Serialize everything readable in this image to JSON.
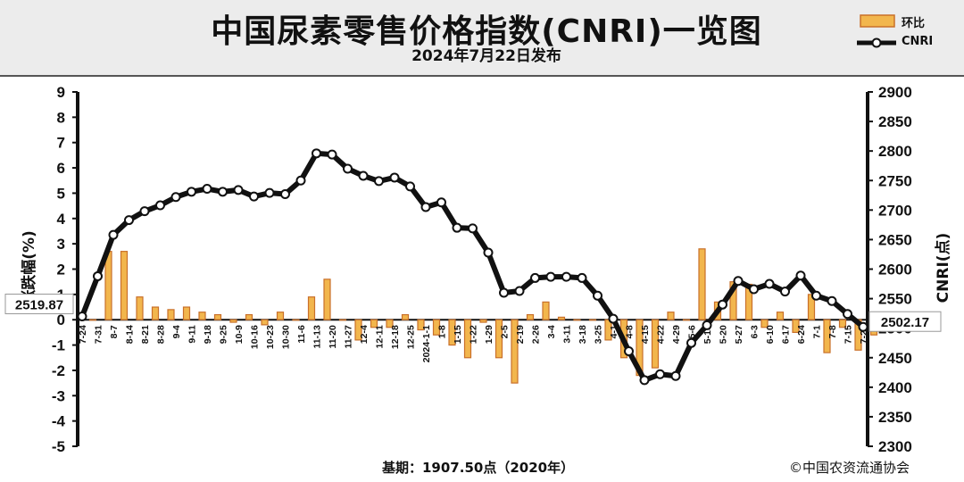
{
  "title": "中国尿素零售价格指数(CNRI)一览图",
  "subtitle": "2024年7月22日发布",
  "legend": {
    "bar_label": "环比",
    "line_label": "CNRI"
  },
  "footer": {
    "base": "基期：1907.50点（2020年）",
    "copyright": "©中国农资流通协会"
  },
  "colors": {
    "bar_fill": "#f2b64d",
    "bar_stroke": "#c9702a",
    "line": "#111111",
    "marker_fill": "#ffffff"
  },
  "chart_data": {
    "type": "bar+line",
    "categories": [
      "7-24",
      "7-31",
      "8-7",
      "8-14",
      "8-21",
      "8-28",
      "9-4",
      "9-11",
      "9-18",
      "9-25",
      "10-9",
      "10-16",
      "10-23",
      "10-30",
      "11-6",
      "11-13",
      "11-20",
      "11-27",
      "12-4",
      "12-11",
      "12-18",
      "12-25",
      "2024-1-1",
      "1-8",
      "1-15",
      "1-22",
      "1-29",
      "2-5",
      "2-19",
      "2-26",
      "3-4",
      "3-11",
      "3-18",
      "3-25",
      "4-1",
      "4-8",
      "4-15",
      "4-22",
      "4-29",
      "5-6",
      "5-13",
      "5-20",
      "5-27",
      "6-3",
      "6-10",
      "6-17",
      "6-24",
      "7-1",
      "7-8",
      "7-15",
      "7-22"
    ],
    "y_left": {
      "label": "涨跌幅(%)",
      "min": -5,
      "max": 9,
      "ticks": [
        9,
        8,
        7,
        6,
        5,
        4,
        3,
        2,
        1,
        0,
        -1,
        -2,
        -3,
        -4,
        -5
      ]
    },
    "y_right": {
      "label": "CNRI(点)",
      "min": 2300,
      "max": 2900,
      "ticks": [
        2900,
        2850,
        2800,
        2750,
        2700,
        2650,
        2600,
        2550,
        2500,
        2450,
        2400,
        2350,
        2300
      ]
    },
    "series": [
      {
        "name": "环比",
        "type": "bar",
        "axis": "left",
        "values": [
          0,
          2.7,
          2.7,
          0.9,
          0.5,
          0.4,
          0.5,
          0.3,
          0.2,
          -0.1,
          0.2,
          -0.2,
          0.3,
          0,
          0.9,
          1.6,
          0,
          -0.8,
          -0.3,
          -0.3,
          0.2,
          -0.4,
          -0.6,
          -1,
          -1.5,
          -0.1,
          -1.5,
          -2.5,
          0.2,
          0.7,
          0.1,
          0,
          0,
          -0.8,
          -1.5,
          -2.2,
          -1.9,
          0.3,
          0,
          2.8,
          0.7,
          1.5,
          1.4,
          -0.3,
          0.3,
          -0.5,
          1.0,
          -1.3,
          -0.3,
          -1.2,
          -0.6
        ]
      },
      {
        "name": "CNRI",
        "type": "line",
        "axis": "right",
        "values": [
          2519.87,
          2588,
          2658,
          2683,
          2698,
          2708,
          2722,
          2731,
          2736,
          2731,
          2734,
          2723,
          2729,
          2727,
          2750,
          2796,
          2794,
          2770,
          2758,
          2749,
          2755,
          2740,
          2705,
          2713,
          2670,
          2669,
          2628,
          2560,
          2563,
          2585,
          2587,
          2587,
          2585,
          2555,
          2516,
          2461,
          2412,
          2422,
          2419,
          2475,
          2505,
          2540,
          2580,
          2566,
          2575,
          2562,
          2589,
          2555,
          2546,
          2524,
          2502.17
        ]
      }
    ],
    "start_label": "2519.87",
    "end_label": "2502.17",
    "grid": false
  }
}
